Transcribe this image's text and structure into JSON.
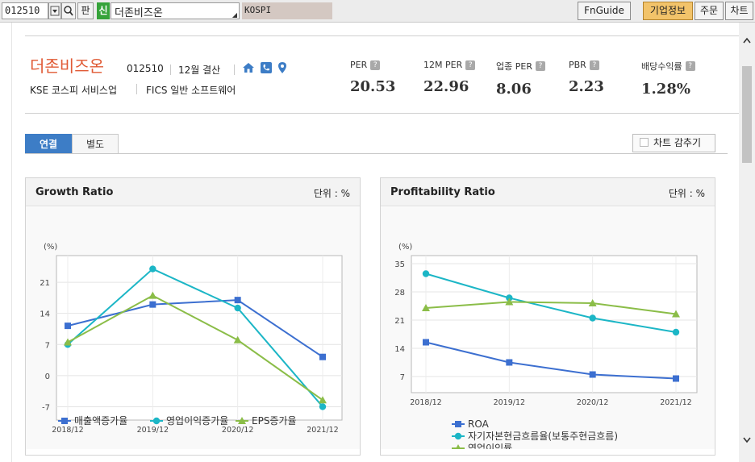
{
  "toolbar": {
    "code": "012510",
    "dropdown_icon": "chevron-down-icon",
    "search_icon": "magnifier-icon",
    "pan_label": "판",
    "new_label": "신",
    "company_name": "더존비즈온",
    "corner_mark": "◢",
    "market": "KOSPI",
    "buttons": [
      "FnGuide",
      "기업정보",
      "주문",
      "차트"
    ]
  },
  "company": {
    "name": "더존비즈온",
    "code": "012510",
    "fiscal": "12월 결산",
    "market_line": "KSE  코스피 서비스업",
    "fics_line": "FICS 일반 소프트웨어",
    "icons": [
      "home-icon",
      "phone-icon",
      "location-pin-icon"
    ]
  },
  "valuations": [
    {
      "label": "PER",
      "value": "20.53"
    },
    {
      "label": "12M PER",
      "value": "22.96"
    },
    {
      "label": "업종 PER",
      "value": "8.06"
    },
    {
      "label": "PBR",
      "value": "2.23"
    },
    {
      "label": "배당수익률",
      "value": "1.28%"
    }
  ],
  "help_mark": "?",
  "tabs": {
    "consolidated": "연결",
    "separate": "별도"
  },
  "chart_hide_label": "차트 감추기",
  "colors": {
    "accent": "#3d7dc6",
    "brand": "#e05a35",
    "blue": "#3c6fd0",
    "teal": "#1cb6c6",
    "green": "#8bbd48"
  },
  "chart_data": [
    {
      "type": "line",
      "title": "Growth Ratio",
      "unit_label": "단위 : %",
      "ylabel": "(%)",
      "categories": [
        "2018/12",
        "2019/12",
        "2020/12",
        "2021/12"
      ],
      "yticks": [
        -7,
        0,
        7,
        14,
        21
      ],
      "ylim": [
        -10,
        27
      ],
      "series": [
        {
          "name": "매출액증가율",
          "color": "#3c6fd0",
          "marker": "square",
          "values": [
            11.2,
            16.0,
            17.0,
            4.2
          ]
        },
        {
          "name": "영업이익증가율",
          "color": "#1cb6c6",
          "marker": "diamond",
          "values": [
            7.0,
            24.0,
            15.2,
            -7.0
          ]
        },
        {
          "name": "EPS증가율",
          "color": "#8bbd48",
          "marker": "triangle",
          "values": [
            7.5,
            18.0,
            8.0,
            -5.5
          ]
        }
      ],
      "legend_position": "bottom"
    },
    {
      "type": "line",
      "title": "Profitability Ratio",
      "unit_label": "단위 : %",
      "ylabel": "(%)",
      "categories": [
        "2018/12",
        "2019/12",
        "2020/12",
        "2021/12"
      ],
      "yticks": [
        7,
        14,
        21,
        28,
        35
      ],
      "ylim": [
        3,
        37
      ],
      "series": [
        {
          "name": "ROA",
          "color": "#3c6fd0",
          "marker": "square",
          "values": [
            15.5,
            10.5,
            7.5,
            6.5
          ]
        },
        {
          "name": "자기자본현금흐름율(보통주현금흐름)",
          "color": "#1cb6c6",
          "marker": "diamond",
          "values": [
            32.5,
            26.5,
            21.5,
            18.0
          ]
        },
        {
          "name": "영업이익률",
          "color": "#8bbd48",
          "marker": "triangle",
          "values": [
            24.0,
            25.5,
            25.2,
            22.5
          ]
        }
      ],
      "legend_position": "bottom"
    }
  ]
}
